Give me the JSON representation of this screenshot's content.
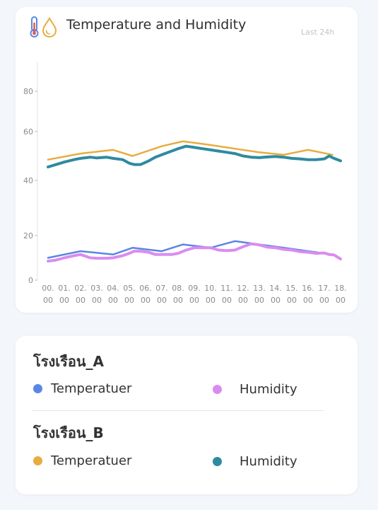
{
  "header": {
    "title": "Temperature and Humidity",
    "subtitle": "Last 24h",
    "icons": [
      "thermometer-icon",
      "droplet-icon"
    ]
  },
  "colors": {
    "a_temperature": "#5b86e5",
    "a_humidity": "#d98cf0",
    "b_temperature": "#e8ac3f",
    "b_humidity": "#2e8aa0"
  },
  "legend": {
    "groups": [
      {
        "name": "โรงเรือน_A",
        "items": [
          {
            "label": "Temperatuer",
            "color": "#5b86e5"
          },
          {
            "label": "Humidity",
            "color": "#d98cf0"
          }
        ]
      },
      {
        "name": "โรงเรือน_B",
        "items": [
          {
            "label": "Temperatuer",
            "color": "#e8ac3f"
          },
          {
            "label": "Humidity",
            "color": "#2e8aa0"
          }
        ]
      }
    ]
  },
  "chart_data": {
    "type": "line",
    "title": "Temperature and Humidity",
    "subtitle": "Last 24h",
    "x_tick_labels": [
      "00.\n00",
      "01.\n00",
      "02.\n00",
      "03.\n00",
      "04.\n00",
      "05.\n00",
      "06.\n00",
      "07.\n00",
      "08.\n00",
      "09.\n00",
      "10.\n00",
      "11.\n00",
      "12.\n00",
      "13.\n00",
      "14.\n00",
      "15.\n00",
      "16.\n00",
      "17.\n00",
      "18.\n00"
    ],
    "y_ticks": [
      0,
      20,
      40,
      60,
      80
    ],
    "ylim": [
      0,
      90
    ],
    "grid": false,
    "series": [
      {
        "group": "โรงเรือน_A",
        "metric": "Temperatuer",
        "color": "#5b86e5",
        "x": [
          0,
          2,
          4,
          5.2,
          7,
          8.3,
          10,
          11.5,
          13,
          14.5,
          16,
          17.5
        ],
        "y": [
          10,
          13,
          11.5,
          14.5,
          13,
          16,
          14.5,
          17.5,
          16,
          14.5,
          13,
          11.5
        ]
      },
      {
        "group": "โรงเรือน_A",
        "metric": "Humidity",
        "color": "#d98cf0",
        "x": [
          0,
          0.5,
          1,
          1.6,
          2,
          2.6,
          3,
          3.6,
          4,
          4.6,
          5,
          5.3,
          5.7,
          6.2,
          6.6,
          7,
          7.6,
          8,
          8.5,
          9,
          9.5,
          10,
          10.5,
          11,
          11.5,
          12,
          12.5,
          13,
          13.5,
          14,
          14.5,
          15,
          15.5,
          16,
          16.5,
          17,
          17.3,
          17.6,
          18
        ],
        "y": [
          8.5,
          9,
          10,
          11,
          11.5,
          10,
          9.8,
          9.8,
          10,
          11,
          12,
          13,
          13,
          12.5,
          11.5,
          11.5,
          11.5,
          12,
          13.5,
          14.5,
          14.5,
          14.5,
          13.5,
          13.2,
          13.5,
          15,
          16.3,
          15.8,
          14.8,
          14.5,
          13.8,
          13.5,
          12.8,
          12.5,
          12,
          12.2,
          11.5,
          11.3,
          9.5
        ]
      },
      {
        "group": "โรงเรือน_B",
        "metric": "Temperatuer",
        "color": "#e8ac3f",
        "x": [
          0,
          2,
          4,
          5.2,
          7,
          8.3,
          10,
          11.5,
          13,
          14.5,
          16,
          17.5
        ],
        "y": [
          48.5,
          51,
          52.5,
          50,
          54,
          56,
          54.5,
          53,
          51.5,
          50.5,
          52.5,
          50.5
        ]
      },
      {
        "group": "โรงเรือน_B",
        "metric": "Humidity",
        "color": "#2e8aa0",
        "x": [
          0,
          0.5,
          1,
          1.6,
          2,
          2.6,
          3,
          3.6,
          4,
          4.6,
          5,
          5.3,
          5.7,
          6.2,
          6.6,
          7,
          7.6,
          8,
          8.5,
          9,
          9.5,
          10,
          10.5,
          11,
          11.5,
          12,
          12.5,
          13,
          13.5,
          14,
          14.5,
          15,
          15.5,
          16,
          16.5,
          17,
          17.3,
          17.6,
          18
        ],
        "y": [
          45.5,
          46.5,
          47.5,
          48.5,
          49,
          49.5,
          49.2,
          49.5,
          49,
          48.5,
          47,
          46.5,
          46.5,
          48,
          49.5,
          50.5,
          52,
          53,
          54,
          53.5,
          53,
          52.5,
          52,
          51.5,
          51,
          50,
          49.5,
          49.3,
          49.6,
          49.8,
          49.5,
          49,
          48.8,
          48.5,
          48.5,
          48.8,
          50,
          49,
          48
        ]
      }
    ]
  }
}
